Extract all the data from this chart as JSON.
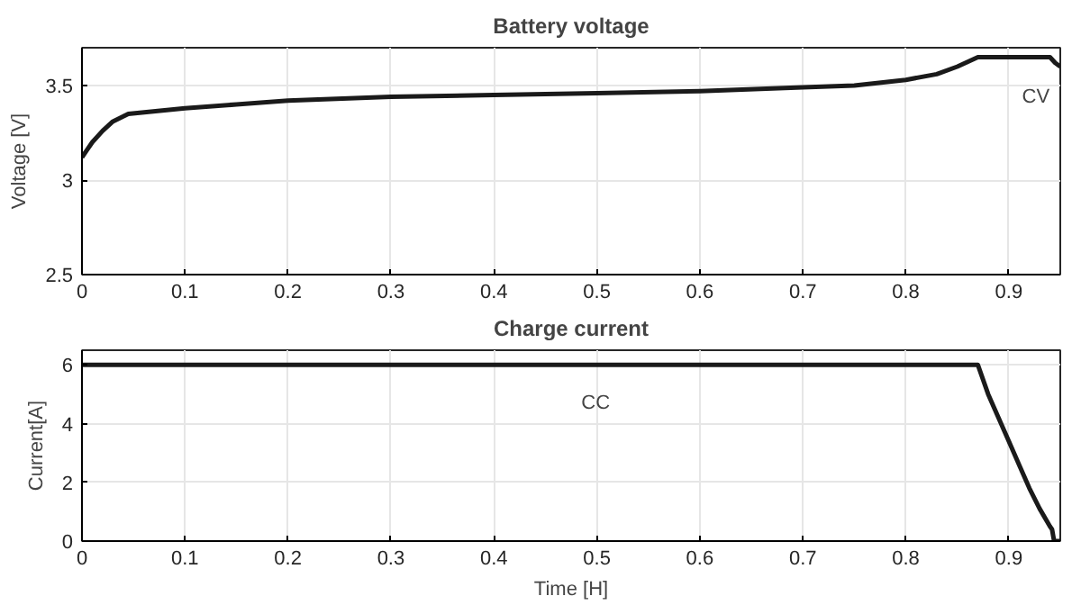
{
  "chart_data": [
    {
      "type": "line",
      "title": "Battery voltage",
      "ylabel": "Voltage [V]",
      "xlim": [
        0,
        0.95
      ],
      "ylim": [
        2.5,
        3.7
      ],
      "xticks": [
        0,
        0.1,
        0.2,
        0.3,
        0.4,
        0.5,
        0.6,
        0.7,
        0.8,
        0.9
      ],
      "yticks": [
        2.5,
        3,
        3.5
      ],
      "grid": true,
      "annotations": [
        "CV"
      ],
      "series": [
        {
          "color": "#1a1a1a",
          "x": [
            0,
            0.005,
            0.01,
            0.02,
            0.03,
            0.045,
            0.1,
            0.15,
            0.2,
            0.3,
            0.4,
            0.5,
            0.6,
            0.7,
            0.75,
            0.8,
            0.83,
            0.85,
            0.87,
            0.94,
            0.945,
            0.95
          ],
          "values": [
            3.12,
            3.16,
            3.2,
            3.26,
            3.31,
            3.35,
            3.38,
            3.4,
            3.42,
            3.44,
            3.45,
            3.46,
            3.47,
            3.49,
            3.5,
            3.53,
            3.56,
            3.6,
            3.65,
            3.65,
            3.62,
            3.6
          ]
        }
      ]
    },
    {
      "type": "line",
      "title": "Charge current",
      "xlabel": "Time [H]",
      "ylabel": "Current[A]",
      "xlim": [
        0,
        0.95
      ],
      "ylim": [
        0,
        6.5
      ],
      "xticks": [
        0,
        0.1,
        0.2,
        0.3,
        0.4,
        0.5,
        0.6,
        0.7,
        0.8,
        0.9
      ],
      "yticks": [
        0,
        2,
        4,
        6
      ],
      "grid": true,
      "annotations": [
        "CC"
      ],
      "series": [
        {
          "color": "#1a1a1a",
          "x": [
            0,
            0.87,
            0.88,
            0.89,
            0.9,
            0.91,
            0.92,
            0.93,
            0.94,
            0.942,
            0.944,
            0.95
          ],
          "values": [
            6,
            6,
            5.0,
            4.2,
            3.4,
            2.6,
            1.8,
            1.1,
            0.5,
            0.4,
            0,
            0
          ]
        }
      ]
    }
  ]
}
